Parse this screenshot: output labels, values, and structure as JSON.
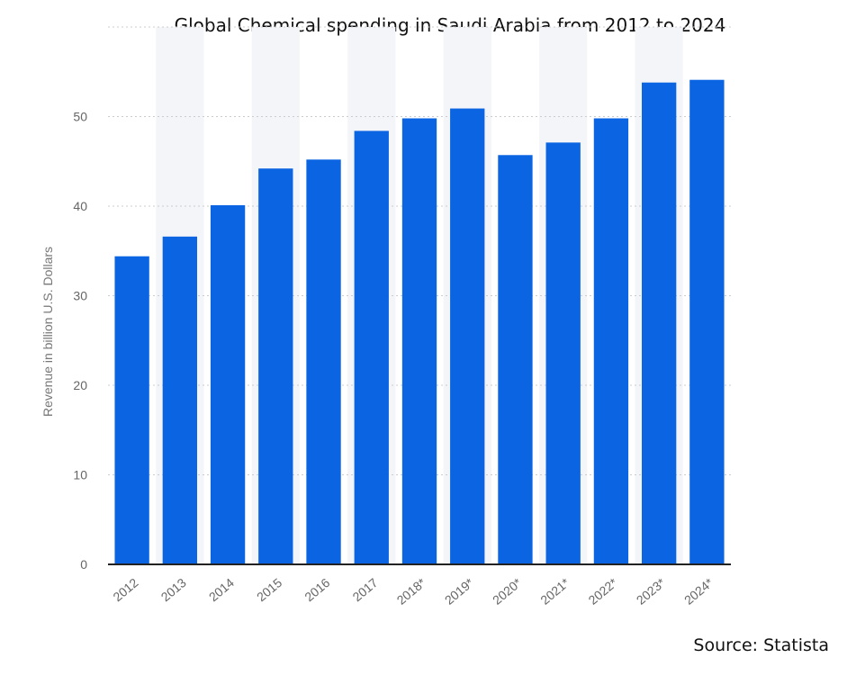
{
  "chart_data": {
    "type": "bar",
    "title": "Global Chemical spending in Saudi Arabia from 2012 to 2024",
    "xlabel": "",
    "ylabel": "Revenue in billion U.S. Dollars",
    "categories": [
      "2012",
      "2013",
      "2014",
      "2015",
      "2016",
      "2017",
      "2018*",
      "2019*",
      "2020*",
      "2021*",
      "2022*",
      "2023*",
      "2024*"
    ],
    "values": [
      34.4,
      36.6,
      40.1,
      44.2,
      45.2,
      48.4,
      49.8,
      50.9,
      45.7,
      47.1,
      49.8,
      53.8,
      54.1
    ],
    "ylim": [
      0,
      60
    ],
    "yticks": [
      0,
      10,
      20,
      30,
      40,
      50
    ],
    "grid": true,
    "legend": "none",
    "colors": {
      "bar": "#0b64e2",
      "grid": "#cccccc",
      "axis": "#222222",
      "band": "#f4f5f8"
    }
  },
  "footer": {
    "source": "Source: Statista"
  }
}
